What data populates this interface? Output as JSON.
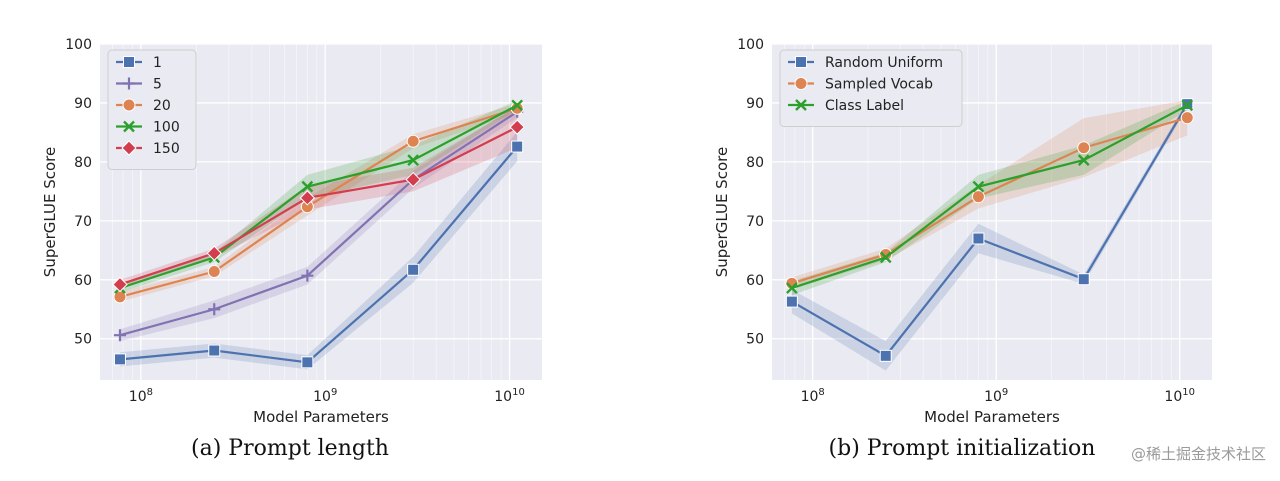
{
  "chart_data": [
    {
      "type": "line",
      "caption": "(a) Prompt length",
      "xlabel": "Model Parameters",
      "ylabel": "SuperGLUE Score",
      "x_scale": "log",
      "xlim": [
        60000000,
        15000000000
      ],
      "ylim": [
        43,
        100
      ],
      "yticks": [
        50,
        60,
        70,
        80,
        90,
        100
      ],
      "xticks": [
        {
          "base": "10",
          "exp": "8",
          "value": 100000000
        },
        {
          "base": "10",
          "exp": "9",
          "value": 1000000000
        },
        {
          "base": "10",
          "exp": "10",
          "value": 10000000000
        }
      ],
      "grid": true,
      "legend": "top-left",
      "x": [
        77000000,
        250000000,
        800000000,
        3000000000,
        11000000000
      ],
      "series": [
        {
          "name": "1",
          "color": "#4c72b0",
          "marker": "square",
          "values": [
            46.5,
            48,
            46,
            61.7,
            82.6
          ],
          "band": [
            1.2,
            1.2,
            1.2,
            2.2,
            2.5
          ]
        },
        {
          "name": "5",
          "color": "#8172b2",
          "marker": "plus",
          "values": [
            50.6,
            55,
            60.7,
            77,
            88.5
          ],
          "band": [
            1.0,
            1.5,
            1.5,
            1.5,
            1.0
          ]
        },
        {
          "name": "20",
          "color": "#dd8452",
          "marker": "circle",
          "values": [
            57.1,
            61.4,
            72.4,
            83.5,
            89.1
          ],
          "band": [
            0.8,
            0.8,
            1.5,
            1.2,
            0.8
          ]
        },
        {
          "name": "100",
          "color": "#2ca02c",
          "marker": "x",
          "values": [
            58.6,
            63.8,
            75.8,
            80.3,
            89.6
          ],
          "band": [
            0.8,
            0.8,
            2.0,
            2.5,
            0.8
          ]
        },
        {
          "name": "150",
          "color": "#d23e4e",
          "marker": "diamond",
          "values": [
            59.2,
            64.5,
            73.9,
            77,
            85.9
          ],
          "band": [
            0.8,
            0.8,
            2.0,
            2.0,
            3.5
          ]
        }
      ]
    },
    {
      "type": "line",
      "caption": "(b) Prompt initialization",
      "xlabel": "Model Parameters",
      "ylabel": "SuperGLUE Score",
      "x_scale": "log",
      "xlim": [
        60000000,
        15000000000
      ],
      "ylim": [
        43,
        100
      ],
      "yticks": [
        50,
        60,
        70,
        80,
        90,
        100
      ],
      "xticks": [
        {
          "base": "10",
          "exp": "8",
          "value": 100000000
        },
        {
          "base": "10",
          "exp": "9",
          "value": 1000000000
        },
        {
          "base": "10",
          "exp": "10",
          "value": 10000000000
        }
      ],
      "grid": true,
      "legend": "top-left",
      "x": [
        77000000,
        250000000,
        800000000,
        3000000000,
        11000000000
      ],
      "series": [
        {
          "name": "Random Uniform",
          "color": "#4c72b0",
          "marker": "square",
          "values": [
            56.3,
            47.1,
            67,
            60.1,
            89.8
          ],
          "band": [
            2.0,
            2.5,
            2.5,
            0.8,
            0.6
          ]
        },
        {
          "name": "Sampled Vocab",
          "color": "#dd8452",
          "marker": "circle",
          "values": [
            59.4,
            64.3,
            74.1,
            82.4,
            87.5
          ],
          "band": [
            1.0,
            1.0,
            2.0,
            5.0,
            3.0
          ]
        },
        {
          "name": "Class Label",
          "color": "#2ca02c",
          "marker": "x",
          "values": [
            58.6,
            63.8,
            75.8,
            80.3,
            89.6
          ],
          "band": [
            1.2,
            0.8,
            2.0,
            2.5,
            0.8
          ]
        }
      ]
    }
  ],
  "watermark": "@稀土掘金技术社区"
}
